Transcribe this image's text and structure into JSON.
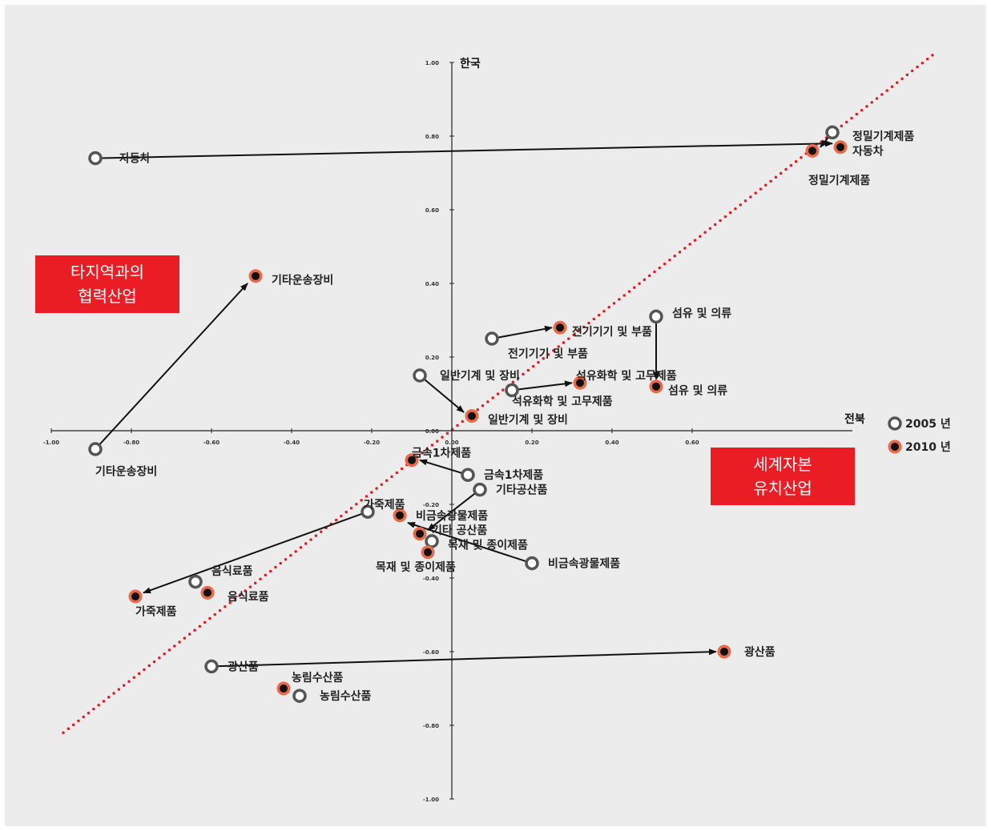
{
  "chart_data": {
    "type": "scatter",
    "xlabel": "전북",
    "ylabel": "한국",
    "xlim": [
      -1.0,
      1.0
    ],
    "ylim": [
      -1.0,
      1.0
    ],
    "x_ticks": [
      -1.0,
      -0.8,
      -0.6,
      -0.4,
      -0.2,
      0.0,
      0.2,
      0.4,
      0.6
    ],
    "x_tick_labels": [
      "-1.00",
      "-0.80",
      "-0.60",
      "-0.40",
      "-0.20",
      "0.00",
      "0.20",
      "0.40",
      "0.60"
    ],
    "y_ticks": [
      1.0,
      0.8,
      0.6,
      0.4,
      0.2,
      0.0,
      -0.2,
      -0.4,
      -0.6,
      -0.8,
      -1.0
    ],
    "y_tick_labels": [
      "1.00",
      "0.80",
      "0.60",
      "0.40",
      "0.20",
      "0.00",
      "-0.20",
      "-0.40",
      "-0.60",
      "-0.80",
      "-1.00"
    ],
    "legend": {
      "position": "right",
      "items": [
        "2005 년",
        "2010 년"
      ]
    },
    "diagonal_line": {
      "from": [
        -0.97,
        -0.82
      ],
      "to": [
        1.2,
        1.02
      ],
      "color": "#e01c24"
    },
    "series": [
      {
        "name": "2005 년",
        "points": [
          {
            "label": "자동차",
            "x": -0.89,
            "y": 0.74
          },
          {
            "label": "정밀기계제품",
            "x": 0.95,
            "y": 0.81
          },
          {
            "label": "기타운송장비",
            "x": -0.89,
            "y": -0.05
          },
          {
            "label": "섬유 및 의류",
            "x": 0.51,
            "y": 0.31
          },
          {
            "label": "전기기기 및 부품",
            "x": 0.1,
            "y": 0.25
          },
          {
            "label": "일반기계 및 장비",
            "x": -0.08,
            "y": 0.15
          },
          {
            "label": "석유화학 및 고무제품",
            "x": 0.15,
            "y": 0.11
          },
          {
            "label": "금속1차제품",
            "x": 0.04,
            "y": -0.12
          },
          {
            "label": "기타공산품",
            "x": 0.07,
            "y": -0.16
          },
          {
            "label": "가죽제품",
            "x": -0.21,
            "y": -0.22
          },
          {
            "label": "목재 및 종이제품",
            "x": -0.05,
            "y": -0.3
          },
          {
            "label": "비금속광물제품",
            "x": 0.2,
            "y": -0.36
          },
          {
            "label": "음식료품",
            "x": -0.64,
            "y": -0.41
          },
          {
            "label": "광산품",
            "x": -0.6,
            "y": -0.64
          },
          {
            "label": "농림수산품",
            "x": -0.38,
            "y": -0.72
          }
        ]
      },
      {
        "name": "2010 년",
        "points": [
          {
            "label": "정밀기계제품",
            "x": 0.9,
            "y": 0.76
          },
          {
            "label": "자동차",
            "x": 0.97,
            "y": 0.77
          },
          {
            "label": "기타운송장비",
            "x": -0.49,
            "y": 0.42
          },
          {
            "label": "전기기기 및 부품",
            "x": 0.27,
            "y": 0.28
          },
          {
            "label": "석유화학 및 고무제품",
            "x": 0.32,
            "y": 0.13
          },
          {
            "label": "섬유 및 의류",
            "x": 0.51,
            "y": 0.12
          },
          {
            "label": "일반기계 및 장비",
            "x": 0.05,
            "y": 0.04
          },
          {
            "label": "금속1차제품",
            "x": -0.1,
            "y": -0.08
          },
          {
            "label": "비금속광물제품",
            "x": -0.13,
            "y": -0.23
          },
          {
            "label": "기타 공산품",
            "x": -0.08,
            "y": -0.28
          },
          {
            "label": "목재 및 종이제품",
            "x": -0.06,
            "y": -0.33
          },
          {
            "label": "가죽제품",
            "x": -0.79,
            "y": -0.45
          },
          {
            "label": "음식료품",
            "x": -0.61,
            "y": -0.44
          },
          {
            "label": "광산품",
            "x": 0.68,
            "y": -0.6
          },
          {
            "label": "농림수산품",
            "x": -0.42,
            "y": -0.7
          }
        ]
      }
    ],
    "arrows": [
      {
        "from": [
          -0.89,
          0.74
        ],
        "to": [
          0.95,
          0.78
        ]
      },
      {
        "from": [
          0.95,
          0.81
        ],
        "to": [
          0.92,
          0.77
        ]
      },
      {
        "from": [
          -0.89,
          -0.05
        ],
        "to": [
          -0.51,
          0.4
        ]
      },
      {
        "from": [
          0.51,
          0.31
        ],
        "to": [
          0.51,
          0.14
        ]
      },
      {
        "from": [
          0.1,
          0.25
        ],
        "to": [
          0.25,
          0.28
        ]
      },
      {
        "from": [
          -0.08,
          0.15
        ],
        "to": [
          0.03,
          0.05
        ]
      },
      {
        "from": [
          0.15,
          0.11
        ],
        "to": [
          0.3,
          0.13
        ]
      },
      {
        "from": [
          0.04,
          -0.12
        ],
        "to": [
          -0.08,
          -0.08
        ]
      },
      {
        "from": [
          0.07,
          -0.16
        ],
        "to": [
          -0.06,
          -0.27
        ]
      },
      {
        "from": [
          -0.21,
          -0.22
        ],
        "to": [
          -0.77,
          -0.44
        ]
      },
      {
        "from": [
          0.2,
          -0.36
        ],
        "to": [
          -0.11,
          -0.25
        ]
      },
      {
        "from": [
          -0.6,
          -0.64
        ],
        "to": [
          0.66,
          -0.6
        ]
      }
    ],
    "annotations": [
      {
        "text": "자동차",
        "x": -0.83,
        "y": 0.74,
        "anchor": "start"
      },
      {
        "text": "정밀기계제품",
        "x": 1.0,
        "y": 0.8,
        "anchor": "start"
      },
      {
        "text": "자동차",
        "x": 1.0,
        "y": 0.76,
        "anchor": "start"
      },
      {
        "text": "정밀기계제품",
        "x": 0.89,
        "y": 0.68,
        "anchor": "start"
      },
      {
        "text": "기타운송장비",
        "x": -0.45,
        "y": 0.41,
        "anchor": "start"
      },
      {
        "text": "섬유 및 의류",
        "x": 0.55,
        "y": 0.32,
        "anchor": "start"
      },
      {
        "text": "전기기기 및 부품",
        "x": 0.3,
        "y": 0.27,
        "anchor": "start"
      },
      {
        "text": "전기기기 및 부품",
        "x": 0.14,
        "y": 0.21,
        "anchor": "start"
      },
      {
        "text": "일반기계 및 장비",
        "x": -0.03,
        "y": 0.15,
        "anchor": "start"
      },
      {
        "text": "석유화학 및 고무제품",
        "x": 0.31,
        "y": 0.15,
        "anchor": "start"
      },
      {
        "text": "석유화학 및 고무제품",
        "x": 0.15,
        "y": 0.08,
        "anchor": "start"
      },
      {
        "text": "섬유 및 의류",
        "x": 0.54,
        "y": 0.11,
        "anchor": "start"
      },
      {
        "text": "일반기계 및 장비",
        "x": 0.09,
        "y": 0.03,
        "anchor": "start"
      },
      {
        "text": "기타운송장비",
        "x": -0.89,
        "y": -0.11,
        "anchor": "start"
      },
      {
        "text": "금속1차제품",
        "x": -0.1,
        "y": -0.06,
        "anchor": "start"
      },
      {
        "text": "금속1차제품",
        "x": 0.08,
        "y": -0.12,
        "anchor": "start"
      },
      {
        "text": "기타공산품",
        "x": 0.11,
        "y": -0.16,
        "anchor": "start"
      },
      {
        "text": "가죽제품",
        "x": -0.22,
        "y": -0.2,
        "anchor": "start"
      },
      {
        "text": "비금속광물제품",
        "x": -0.09,
        "y": -0.23,
        "anchor": "start"
      },
      {
        "text": "기타 공산품",
        "x": -0.05,
        "y": -0.27,
        "anchor": "start"
      },
      {
        "text": "목재 및 종이제품",
        "x": -0.01,
        "y": -0.31,
        "anchor": "start"
      },
      {
        "text": "비금속광물제품",
        "x": 0.24,
        "y": -0.36,
        "anchor": "start"
      },
      {
        "text": "목재 및 종이제품",
        "x": -0.19,
        "y": -0.37,
        "anchor": "start"
      },
      {
        "text": "음식료품",
        "x": -0.6,
        "y": -0.38,
        "anchor": "start"
      },
      {
        "text": "음식료품",
        "x": -0.56,
        "y": -0.45,
        "anchor": "start"
      },
      {
        "text": "가죽제품",
        "x": -0.79,
        "y": -0.49,
        "anchor": "start"
      },
      {
        "text": "광산품",
        "x": 0.73,
        "y": -0.6,
        "anchor": "start"
      },
      {
        "text": "광산품",
        "x": -0.56,
        "y": -0.64,
        "anchor": "start"
      },
      {
        "text": "농림수산품",
        "x": -0.4,
        "y": -0.67,
        "anchor": "start"
      },
      {
        "text": "농림수산품",
        "x": -0.33,
        "y": -0.72,
        "anchor": "start"
      }
    ]
  },
  "box_left": {
    "line1": "타지역과의",
    "line2": "협력산업"
  },
  "box_right": {
    "line1": "세계자본",
    "line2": "유치산업"
  },
  "colors": {
    "accent": "#ea1c24",
    "marker_fill": "#e86a4a",
    "background": "#ececec"
  }
}
